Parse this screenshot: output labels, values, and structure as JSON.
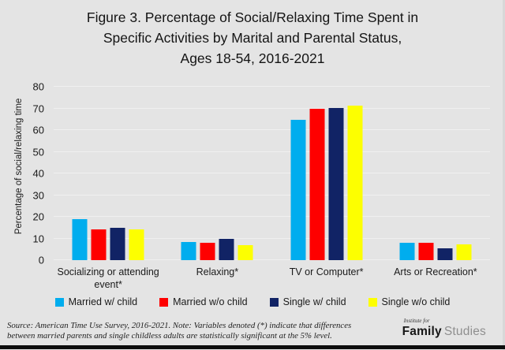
{
  "title": {
    "lines": [
      "Figure 3. Percentage of Social/Relaxing Time Spent in",
      "Specific Activities by Marital and Parental Status,",
      "Ages 18-54, 2016-2021"
    ]
  },
  "chart_data": {
    "type": "bar",
    "title": "Figure 3. Percentage of Social/Relaxing Time Spent in Specific Activities by Marital and Parental Status, Ages 18-54, 2016-2021",
    "categories": [
      "Socializing or attending event*",
      "Relaxing*",
      "TV or Computer*",
      "Arts or Recreation*"
    ],
    "series": [
      {
        "name": "Married w/ child",
        "color": "#00adee",
        "values": [
          19.0,
          8.3,
          64.8,
          7.9
        ]
      },
      {
        "name": "Married w/o child",
        "color": "#fe0000",
        "values": [
          14.2,
          7.9,
          70.0,
          8.1
        ]
      },
      {
        "name": "Single w/ child",
        "color": "#112365",
        "values": [
          14.8,
          9.7,
          70.3,
          5.3
        ]
      },
      {
        "name": "Single w/o child",
        "color": "#fdff00",
        "values": [
          14.2,
          7.0,
          71.4,
          7.3
        ]
      }
    ],
    "ylabel": "Percentage of social/relaxing time",
    "ylim": [
      0,
      80
    ],
    "ytick_step": 10,
    "grid": true,
    "legend_position": "bottom"
  },
  "footer": {
    "source_lines": [
      "Source: American Time Use Survey, 2016-2021. Note: Variables denoted (*) indicate that differences",
      "between married parents and single childless adults are statistically significant at the 5% level."
    ],
    "logo": {
      "top": "Institute for",
      "bold": "Family",
      "light": "Studies"
    }
  },
  "colors": {
    "background": "#e4e4e4",
    "gridline": "#f0f0f0",
    "bottom_bar": "#0d0d0d"
  }
}
